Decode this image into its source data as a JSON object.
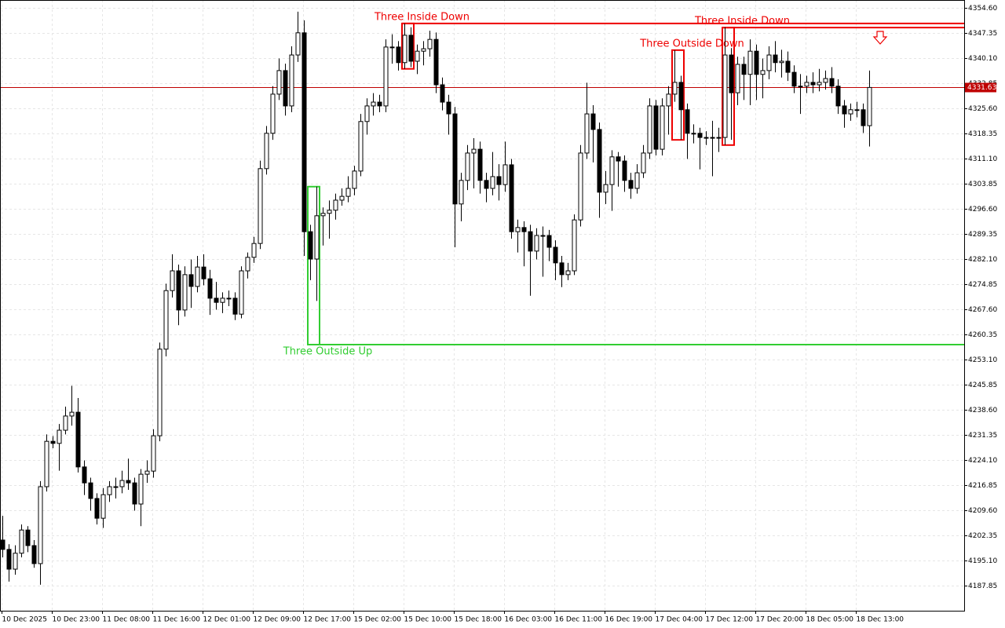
{
  "chart_data": {
    "type": "candlestick",
    "categories": [
      "10 Dec 2025",
      null,
      null,
      null,
      null,
      null,
      null,
      null,
      "10 Dec 23:00",
      null,
      null,
      null,
      null,
      null,
      null,
      null,
      "11 Dec 08:00",
      null,
      null,
      null,
      null,
      null,
      null,
      null,
      "11 Dec 16:00",
      null,
      null,
      null,
      null,
      null,
      null,
      null,
      "12 Dec 01:00",
      null,
      null,
      null,
      null,
      null,
      null,
      null,
      "12 Dec 09:00",
      null,
      null,
      null,
      null,
      null,
      null,
      null,
      "12 Dec 17:00",
      null,
      null,
      null,
      null,
      null,
      null,
      null,
      "15 Dec 02:00",
      null,
      null,
      null,
      null,
      null,
      null,
      null,
      "15 Dec 10:00",
      null,
      null,
      null,
      null,
      null,
      null,
      null,
      "15 Dec 18:00",
      null,
      null,
      null,
      null,
      null,
      null,
      null,
      "16 Dec 03:00",
      null,
      null,
      null,
      null,
      null,
      null,
      null,
      "16 Dec 11:00",
      null,
      null,
      null,
      null,
      null,
      null,
      null,
      "16 Dec 19:00",
      null,
      null,
      null,
      null,
      null,
      null,
      null,
      "17 Dec 04:00",
      null,
      null,
      null,
      null,
      null,
      null,
      null,
      "17 Dec 12:00",
      null,
      null,
      null,
      null,
      null,
      null,
      null,
      "17 Dec 20:00",
      null,
      null,
      null,
      null,
      null,
      null,
      null,
      "18 Dec 05:00",
      null,
      null,
      null,
      null,
      null,
      null,
      null,
      "18 Dec 13:00",
      null,
      null
    ],
    "open": [
      4201.0,
      4198.3,
      4192.6,
      4197.2,
      4203.9,
      4199.4,
      4194.2,
      4216.4,
      4229.5,
      4228.9,
      4232.7,
      4236.8,
      4237.9,
      4222.1,
      4217.5,
      4213.0,
      4207.3,
      4214.1,
      4216.4,
      4216.4,
      4218.2,
      4217.5,
      4211.4,
      4220.0,
      4220.9,
      4231.1,
      4256.1,
      4273.0,
      4278.7,
      4267.4,
      4277.6,
      4274.2,
      4279.8,
      4276.4,
      4270.8,
      4269.6,
      4270.8,
      4270.8,
      4266.2,
      4278.7,
      4282.6,
      4286.6,
      4308.2,
      4318.4,
      4329.7,
      4336.5,
      4326.3,
      4341.0,
      4347.4,
      4290.0,
      4282.1,
      4294.6,
      4295.3,
      4296.2,
      4299.1,
      4300.2,
      4302.5,
      4307.5,
      4321.8,
      4326.3,
      4327.4,
      4326.3,
      4343.3,
      4343.3,
      4338.8,
      4346.7,
      4339.2,
      4342.1,
      4342.8,
      4345.5,
      4332.4,
      4327.4,
      4324.0,
      4298.0,
      4304.8,
      4312.7,
      4313.8,
      4304.8,
      4302.5,
      4305.9,
      4303.6,
      4309.3,
      4290.0,
      4291.2,
      4290.0,
      4284.4,
      4288.9,
      4288.9,
      4285.5,
      4281.0,
      4277.6,
      4278.7,
      4293.4,
      4312.7,
      4324.0,
      4319.5,
      4301.4,
      4303.6,
      4311.6,
      4310.4,
      4304.8,
      4302.5,
      4307.0,
      4312.7,
      4326.3,
      4313.8,
      4326.3,
      4329.7,
      4333.1,
      4325.2,
      4318.4,
      4318.4,
      4317.2,
      4317.2,
      4317.2,
      4317.2,
      4341.0,
      4330.1,
      4338.3,
      4335.4,
      4342.1,
      4335.4,
      4336.5,
      4341.0,
      4338.8,
      4339.2,
      4336.0,
      4332.0,
      4332.0,
      4333.1,
      4332.4,
      4333.1,
      4334.2,
      4332.0,
      4326.3,
      4324.0,
      4325.2,
      4325.2,
      4320.6
    ],
    "high": [
      4208.0,
      4199.8,
      4199.5,
      4205.5,
      4205.0,
      4201.0,
      4218.0,
      4231.5,
      4231.0,
      4234.5,
      4239.5,
      4245.5,
      4242.0,
      4224.0,
      4219.0,
      4214.5,
      4216.0,
      4218.0,
      4219.0,
      4221.0,
      4224.5,
      4219.0,
      4221.5,
      4224.0,
      4233.0,
      4258.0,
      4275.0,
      4283.5,
      4280.5,
      4280.0,
      4282.0,
      4283.0,
      4283.5,
      4279.0,
      4275.5,
      4272.5,
      4273.0,
      4272.5,
      4280.0,
      4284.0,
      4288.5,
      4310.5,
      4320.5,
      4332.0,
      4340.0,
      4338.5,
      4343.5,
      4353.5,
      4351.0,
      4292.0,
      4303.0,
      4297.0,
      4299.0,
      4301.0,
      4302.5,
      4306.0,
      4309.0,
      4324.0,
      4328.5,
      4330.0,
      4329.5,
      4345.5,
      4347.0,
      4345.0,
      4350.1,
      4349.0,
      4344.0,
      4345.0,
      4348.0,
      4347.5,
      4334.5,
      4329.5,
      4326.0,
      4307.0,
      4315.0,
      4317.0,
      4316.0,
      4307.0,
      4313.0,
      4309.5,
      4316.0,
      4311.0,
      4293.5,
      4293.0,
      4292.0,
      4291.0,
      4291.5,
      4290.5,
      4287.5,
      4283.0,
      4281.0,
      4295.0,
      4315.0,
      4333.0,
      4326.5,
      4321.5,
      4307.5,
      4313.5,
      4313.0,
      4312.0,
      4307.0,
      4309.5,
      4315.0,
      4328.5,
      4328.0,
      4328.5,
      4332.0,
      4342.4,
      4335.0,
      4327.0,
      4321.0,
      4320.0,
      4319.0,
      4322.0,
      4320.0,
      4349.0,
      4343.0,
      4340.5,
      4340.5,
      4345.5,
      4344.0,
      4340.0,
      4343.5,
      4345.0,
      4342.5,
      4342.0,
      4338.0,
      4335.5,
      4335.0,
      4336.0,
      4337.0,
      4336.5,
      4337.5,
      4334.0,
      4328.0,
      4327.0,
      4327.5,
      4327.0,
      4336.5
    ],
    "low": [
      4196.0,
      4189.0,
      4191.0,
      4196.0,
      4197.5,
      4193.0,
      4188.1,
      4215.0,
      4227.5,
      4221.0,
      4231.5,
      4234.0,
      4220.5,
      4214.0,
      4209.5,
      4205.5,
      4204.5,
      4212.0,
      4213.0,
      4214.5,
      4215.5,
      4209.5,
      4205.0,
      4217.5,
      4219.0,
      4229.5,
      4254.0,
      4271.0,
      4263.0,
      4265.5,
      4268.0,
      4272.5,
      4274.5,
      4266.0,
      4267.5,
      4266.5,
      4268.5,
      4264.5,
      4265.0,
      4276.5,
      4281.0,
      4285.0,
      4306.5,
      4316.5,
      4328.0,
      4323.5,
      4324.5,
      4339.0,
      4283.0,
      4276.0,
      4270.0,
      4286.0,
      4288.0,
      4293.5,
      4297.5,
      4298.5,
      4300.5,
      4306.0,
      4318.0,
      4323.5,
      4324.5,
      4324.5,
      4338.5,
      4336.5,
      4337.0,
      4337.5,
      4335.5,
      4338.0,
      4340.5,
      4330.0,
      4325.0,
      4318.0,
      4285.5,
      4293.0,
      4302.0,
      4302.5,
      4301.0,
      4298.5,
      4300.5,
      4299.0,
      4301.5,
      4288.0,
      4284.0,
      4280.0,
      4271.5,
      4282.0,
      4277.0,
      4281.5,
      4276.0,
      4274.0,
      4276.0,
      4277.5,
      4291.5,
      4311.0,
      4310.0,
      4294.0,
      4298.0,
      4296.0,
      4303.0,
      4301.5,
      4299.5,
      4301.0,
      4305.5,
      4311.0,
      4312.0,
      4312.0,
      4318.0,
      4327.5,
      4316.5,
      4311.0,
      4315.5,
      4308.0,
      4315.0,
      4306.0,
      4313.0,
      4315.0,
      4316.5,
      4326.5,
      4328.0,
      4326.5,
      4328.0,
      4328.5,
      4334.0,
      4336.0,
      4334.5,
      4333.5,
      4330.0,
      4324.0,
      4330.0,
      4330.0,
      4330.5,
      4331.0,
      4330.0,
      4324.0,
      4320.0,
      4322.0,
      4323.0,
      4318.5,
      4314.6
    ],
    "close": [
      4198.3,
      4192.6,
      4197.2,
      4203.9,
      4199.4,
      4194.2,
      4216.4,
      4229.5,
      4228.9,
      4232.7,
      4236.8,
      4237.9,
      4222.1,
      4217.5,
      4213.0,
      4207.3,
      4214.1,
      4216.4,
      4216.4,
      4218.2,
      4217.5,
      4211.4,
      4220.0,
      4220.9,
      4231.1,
      4256.1,
      4273.0,
      4278.7,
      4267.4,
      4277.6,
      4274.2,
      4279.8,
      4276.4,
      4270.8,
      4269.6,
      4270.8,
      4270.8,
      4266.2,
      4278.7,
      4282.6,
      4286.6,
      4308.2,
      4318.4,
      4329.7,
      4336.5,
      4326.3,
      4341.0,
      4347.4,
      4290.0,
      4282.1,
      4294.6,
      4295.3,
      4296.2,
      4299.1,
      4300.2,
      4302.5,
      4307.5,
      4321.8,
      4326.3,
      4327.4,
      4326.3,
      4343.3,
      4343.3,
      4338.8,
      4346.7,
      4339.2,
      4342.1,
      4342.8,
      4345.5,
      4332.4,
      4327.4,
      4324.0,
      4298.0,
      4304.8,
      4312.7,
      4313.8,
      4304.8,
      4302.5,
      4305.9,
      4303.6,
      4309.3,
      4290.0,
      4291.2,
      4290.0,
      4284.4,
      4288.9,
      4288.9,
      4285.5,
      4281.0,
      4277.6,
      4278.7,
      4293.4,
      4312.7,
      4324.0,
      4319.5,
      4301.4,
      4303.6,
      4311.6,
      4310.4,
      4304.8,
      4302.5,
      4307.0,
      4312.7,
      4326.3,
      4313.8,
      4326.3,
      4329.7,
      4333.1,
      4325.2,
      4318.4,
      4318.4,
      4317.2,
      4317.2,
      4317.2,
      4317.2,
      4341.0,
      4330.1,
      4338.3,
      4335.4,
      4342.1,
      4335.4,
      4336.5,
      4341.0,
      4338.8,
      4339.2,
      4336.0,
      4332.0,
      4332.0,
      4333.1,
      4332.4,
      4333.1,
      4334.2,
      4332.0,
      4326.3,
      4324.0,
      4325.2,
      4325.2,
      4320.6,
      4331.63
    ],
    "up_color": "#ffffff",
    "down_color": "#000000",
    "ylim": [
      4180.6,
      4356.87
    ],
    "yticks": [
      {
        "value": 4354.6,
        "label": "4354.60"
      },
      4347.35,
      {
        "value": 4340.1,
        "label": "4340.10"
      },
      4332.85,
      {
        "value": 4325.6,
        "label": "4325.60"
      },
      4318.35,
      {
        "value": 4311.1,
        "label": "4311.10"
      },
      4303.85,
      {
        "value": 4296.6,
        "label": "4296.60"
      },
      4289.35,
      {
        "value": 4282.1,
        "label": "4282.10"
      },
      4274.85,
      {
        "value": 4267.6,
        "label": "4267.60"
      },
      4260.35,
      {
        "value": 4253.1,
        "label": "4253.10"
      },
      4245.85,
      {
        "value": 4238.6,
        "label": "4238.60"
      },
      4231.35,
      {
        "value": 4224.1,
        "label": "4224.10"
      },
      4216.85,
      {
        "value": 4209.6,
        "label": "4209.60"
      },
      4202.35,
      {
        "value": 4195.1,
        "label": "4195.10"
      },
      4187.85
    ],
    "grid": true,
    "last_price": 4331.63,
    "last_price_color": "#c00000",
    "annotations": [
      {
        "text": "Three Inside Down",
        "color": "#ee0000",
        "level": 4350.1
      },
      {
        "text": "Three Inside Down",
        "color": "#ee0000",
        "level": 4348.9
      },
      {
        "text": "Three Outside Down",
        "color": "#ee0000"
      },
      {
        "text": "Three Outside Up",
        "color": "#32cd32",
        "level": 4257.4
      }
    ]
  }
}
